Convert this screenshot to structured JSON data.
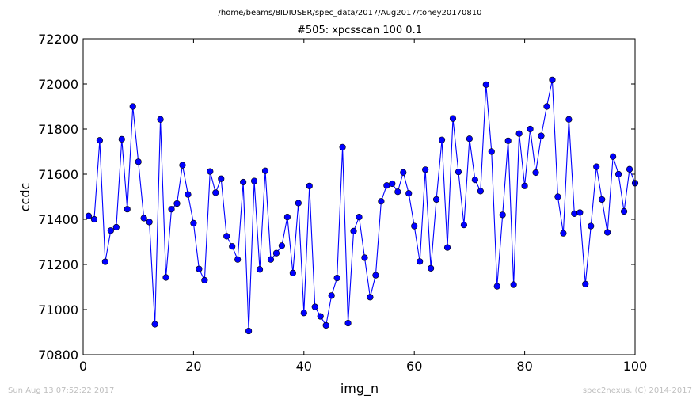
{
  "footer": {
    "timestamp": "Sun Aug 13 07:52:22 2017",
    "credit": "spec2nexus, (C) 2014-2017"
  },
  "colors": {
    "series": "#0000ff",
    "axis": "#000000",
    "background": "#ffffff",
    "footer_text": "#bfbfbf"
  },
  "chart_data": {
    "type": "line",
    "subtitle": "/home/beams/8IDIUSER/spec_data/2017/Aug2017/toney20170810",
    "title": "#505: xpcsscan 100 0.1",
    "xlabel": "img_n",
    "ylabel": "ccdc",
    "xlim": [
      0,
      100
    ],
    "ylim": [
      70800,
      72200
    ],
    "xticks": [
      0,
      20,
      40,
      60,
      80,
      100
    ],
    "yticks": [
      70800,
      71000,
      71200,
      71400,
      71600,
      71800,
      72000,
      72200
    ],
    "grid": false,
    "markers": "circle",
    "series": [
      {
        "x": [
          1,
          2,
          3,
          4,
          5,
          6,
          7,
          8,
          9,
          10,
          11,
          12,
          13,
          14,
          15,
          16,
          17,
          18,
          19,
          20,
          21,
          22,
          23,
          24,
          25,
          26,
          27,
          28,
          29,
          30,
          31,
          32,
          33,
          34,
          35,
          36,
          37,
          38,
          39,
          40,
          41,
          42,
          43,
          44,
          45,
          46,
          47,
          48,
          49,
          50,
          51,
          52,
          53,
          54,
          55,
          56,
          57,
          58,
          59,
          60,
          61,
          62,
          63,
          64,
          65,
          66,
          67,
          68,
          69,
          70,
          71,
          72,
          73,
          74,
          75,
          76,
          77,
          78,
          79,
          80,
          81,
          82,
          83,
          84,
          85,
          86,
          87,
          88,
          89,
          90,
          91,
          92,
          93,
          94,
          95,
          96,
          97,
          98,
          99,
          100
        ],
        "y": [
          71415,
          71400,
          71750,
          71212,
          71350,
          71365,
          71755,
          71445,
          71900,
          71655,
          71405,
          71388,
          70935,
          71843,
          71142,
          71445,
          71470,
          71640,
          71510,
          71383,
          71180,
          71130,
          71612,
          71518,
          71580,
          71325,
          71280,
          71222,
          71565,
          70905,
          71570,
          71178,
          71615,
          71222,
          71250,
          71283,
          71410,
          71162,
          71472,
          70985,
          71548,
          71012,
          70970,
          70930,
          71062,
          71140,
          71720,
          70940,
          71348,
          71410,
          71230,
          71055,
          71152,
          71480,
          71550,
          71558,
          71522,
          71608,
          71515,
          71370,
          71213,
          71620,
          71183,
          71488,
          71752,
          71275,
          71847,
          71610,
          71375,
          71757,
          71575,
          71525,
          71997,
          71700,
          71103,
          71420,
          71748,
          71110,
          71780,
          71548,
          71800,
          71607,
          71770,
          71900,
          72018,
          71500,
          71338,
          71843,
          71425,
          71430,
          71113,
          71370,
          71633,
          71488,
          71342,
          71678,
          71600,
          71435,
          71622,
          71560
        ]
      }
    ]
  }
}
